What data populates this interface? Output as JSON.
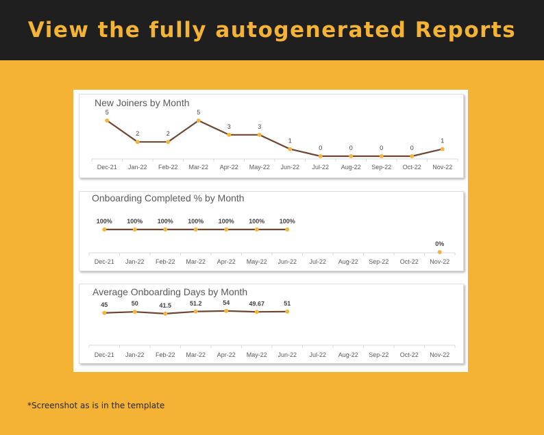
{
  "banner": {
    "title": "View the fully autogenerated Reports"
  },
  "footnote": "*Screenshot as is in the template",
  "colors": {
    "background": "#f5b335",
    "banner": "#1f1f1f",
    "line": "#6b4633",
    "marker": "#f2b640",
    "axis": "#d9d9d9"
  },
  "chart_data": [
    {
      "type": "line",
      "title": "New Joiners by Month",
      "categories": [
        "Dec-21",
        "Jan-22",
        "Feb-22",
        "Mar-22",
        "Apr-22",
        "May-22",
        "Jun-22",
        "Jul-22",
        "Aug-22",
        "Sep-22",
        "Oct-22",
        "Nov-22"
      ],
      "values": [
        5,
        2,
        2,
        5,
        3,
        3,
        1,
        0,
        0,
        0,
        0,
        1
      ],
      "labels": [
        "5",
        "2",
        "2",
        "5",
        "3",
        "3",
        "1",
        "0",
        "0",
        "0",
        "0",
        "1"
      ],
      "ylim": [
        0,
        5
      ],
      "grid": false,
      "xlabel": "",
      "ylabel": ""
    },
    {
      "type": "line",
      "title": "Onboarding Completed % by Month",
      "categories": [
        "Dec-21",
        "Jan-22",
        "Feb-22",
        "Mar-22",
        "Apr-22",
        "May-22",
        "Jun-22",
        "Jul-22",
        "Aug-22",
        "Sep-22",
        "Oct-22",
        "Nov-22"
      ],
      "values": [
        100,
        100,
        100,
        100,
        100,
        100,
        100,
        null,
        null,
        null,
        null,
        0
      ],
      "labels": [
        "100%",
        "100%",
        "100%",
        "100%",
        "100%",
        "100%",
        "100%",
        "",
        "",
        "",
        "",
        "0%"
      ],
      "ylim": [
        0,
        100
      ],
      "grid": false,
      "xlabel": "",
      "ylabel": ""
    },
    {
      "type": "line",
      "title": "Average Onboarding Days by Month",
      "categories": [
        "Dec-21",
        "Jan-22",
        "Feb-22",
        "Mar-22",
        "Apr-22",
        "May-22",
        "Jun-22",
        "Jul-22",
        "Aug-22",
        "Sep-22",
        "Oct-22",
        "Nov-22"
      ],
      "values": [
        45,
        50,
        41.5,
        51.2,
        54,
        49.67,
        51,
        null,
        null,
        null,
        null,
        null
      ],
      "labels": [
        "45",
        "50",
        "41.5",
        "51.2",
        "54",
        "49.67",
        "51",
        "",
        "",
        "",
        "",
        ""
      ],
      "ylim": [
        0,
        60
      ],
      "grid": false,
      "xlabel": "",
      "ylabel": ""
    }
  ]
}
